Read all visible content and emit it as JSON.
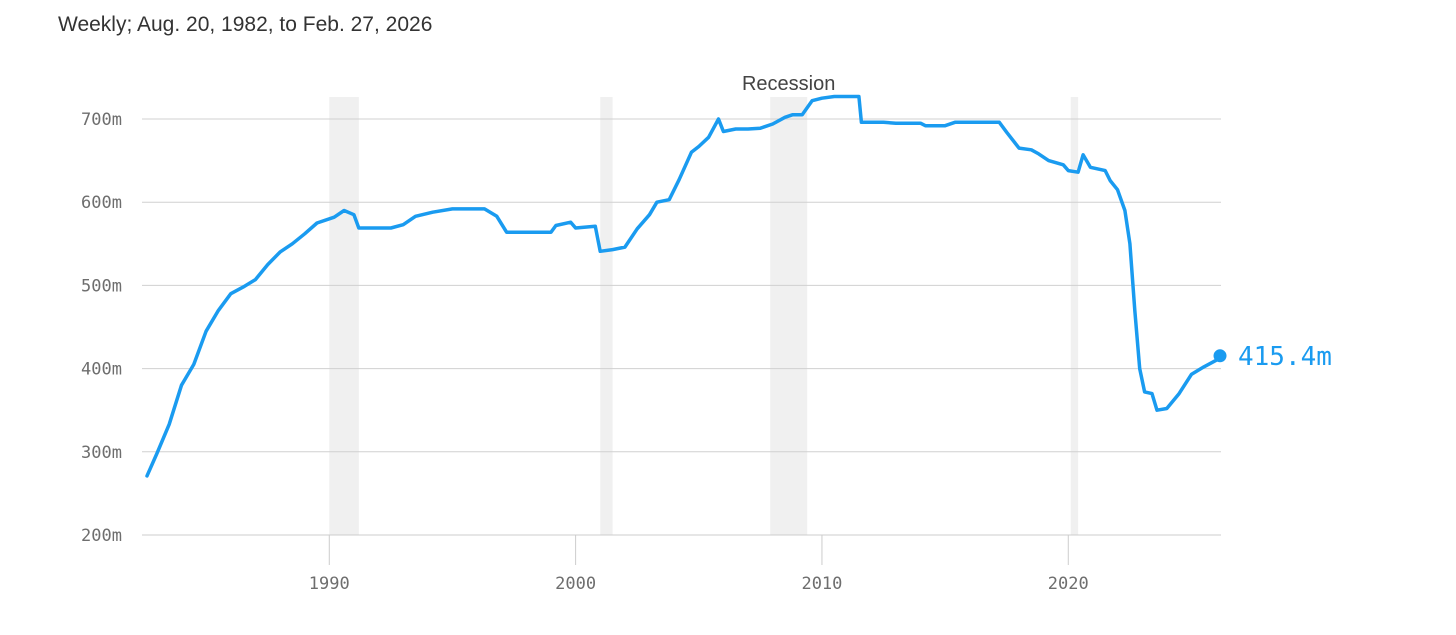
{
  "subtitle": "Weekly; Aug. 20, 1982, to Feb. 27, 2026",
  "colors": {
    "line": "#1a9bf0",
    "grid": "#d0d0d0",
    "shade": "#f0f0f0",
    "axis": "#cccccc"
  },
  "chart_data": {
    "type": "line",
    "title": "",
    "subtitle": "Weekly; Aug. 20, 1982, to Feb. 27, 2026",
    "xlabel": "",
    "ylabel": "",
    "xlim": [
      1982.6,
      2026.2
    ],
    "ylim": [
      200,
      700
    ],
    "x_ticks": [
      1990,
      2000,
      2010,
      2020
    ],
    "x_tick_labels": [
      "1990",
      "2000",
      "2010",
      "2020"
    ],
    "y_ticks": [
      200,
      300,
      400,
      500,
      600,
      700
    ],
    "y_tick_labels": [
      "200m",
      "300m",
      "400m",
      "500m",
      "600m",
      "700m"
    ],
    "grid": "horizontal",
    "shaded_regions": [
      {
        "x0": 1990.0,
        "x1": 1991.2
      },
      {
        "x0": 2001.0,
        "x1": 2001.5
      },
      {
        "x0": 2007.9,
        "x1": 2009.4
      },
      {
        "x0": 2020.1,
        "x1": 2020.4
      }
    ],
    "shade_label": "Recession",
    "end_label": "415.4m",
    "series": [
      {
        "values": [
          [
            1982.6,
            271
          ],
          [
            1983.0,
            298
          ],
          [
            1983.5,
            333
          ],
          [
            1984.0,
            380
          ],
          [
            1984.5,
            405
          ],
          [
            1985.0,
            445
          ],
          [
            1985.5,
            470
          ],
          [
            1986.0,
            490
          ],
          [
            1986.5,
            498
          ],
          [
            1987.0,
            507
          ],
          [
            1987.5,
            525
          ],
          [
            1988.0,
            540
          ],
          [
            1988.5,
            550
          ],
          [
            1989.0,
            562
          ],
          [
            1989.5,
            575
          ],
          [
            1990.2,
            582
          ],
          [
            1990.6,
            590
          ],
          [
            1991.0,
            585
          ],
          [
            1991.2,
            569
          ],
          [
            1992.5,
            569
          ],
          [
            1993.0,
            573
          ],
          [
            1993.5,
            583
          ],
          [
            1994.2,
            588
          ],
          [
            1995.0,
            592
          ],
          [
            1996.3,
            592
          ],
          [
            1996.8,
            583
          ],
          [
            1997.2,
            564
          ],
          [
            1998.0,
            564
          ],
          [
            1999.0,
            564
          ],
          [
            1999.2,
            572
          ],
          [
            1999.8,
            576
          ],
          [
            2000.0,
            569
          ],
          [
            2000.8,
            571
          ],
          [
            2001.0,
            541
          ],
          [
            2001.5,
            543
          ],
          [
            2002.0,
            546
          ],
          [
            2002.5,
            568
          ],
          [
            2003.0,
            585
          ],
          [
            2003.3,
            600
          ],
          [
            2003.8,
            603
          ],
          [
            2004.2,
            627
          ],
          [
            2004.7,
            660
          ],
          [
            2005.0,
            667
          ],
          [
            2005.4,
            678
          ],
          [
            2005.8,
            700
          ],
          [
            2006.0,
            685
          ],
          [
            2006.5,
            688
          ],
          [
            2007.0,
            688
          ],
          [
            2007.5,
            689
          ],
          [
            2008.0,
            694
          ],
          [
            2008.5,
            702
          ],
          [
            2008.8,
            705
          ],
          [
            2009.2,
            705
          ],
          [
            2009.6,
            722
          ],
          [
            2010.0,
            725
          ],
          [
            2010.5,
            727
          ],
          [
            2011.5,
            727
          ],
          [
            2011.6,
            696
          ],
          [
            2012.5,
            696
          ],
          [
            2013.0,
            695
          ],
          [
            2014.0,
            695
          ],
          [
            2014.2,
            692
          ],
          [
            2015.0,
            692
          ],
          [
            2015.4,
            696
          ],
          [
            2016.5,
            696
          ],
          [
            2017.2,
            696
          ],
          [
            2017.5,
            684
          ],
          [
            2018.0,
            665
          ],
          [
            2018.5,
            663
          ],
          [
            2018.8,
            658
          ],
          [
            2019.2,
            650
          ],
          [
            2019.8,
            645
          ],
          [
            2020.0,
            638
          ],
          [
            2020.4,
            636
          ],
          [
            2020.6,
            657
          ],
          [
            2020.9,
            642
          ],
          [
            2021.2,
            640
          ],
          [
            2021.5,
            638
          ],
          [
            2021.7,
            626
          ],
          [
            2022.0,
            615
          ],
          [
            2022.3,
            590
          ],
          [
            2022.5,
            550
          ],
          [
            2022.7,
            470
          ],
          [
            2022.9,
            400
          ],
          [
            2023.1,
            372
          ],
          [
            2023.4,
            370
          ],
          [
            2023.6,
            350
          ],
          [
            2024.0,
            352
          ],
          [
            2024.5,
            370
          ],
          [
            2025.0,
            393
          ],
          [
            2025.5,
            402
          ],
          [
            2026.0,
            410
          ],
          [
            2026.16,
            415.4
          ]
        ]
      }
    ]
  }
}
